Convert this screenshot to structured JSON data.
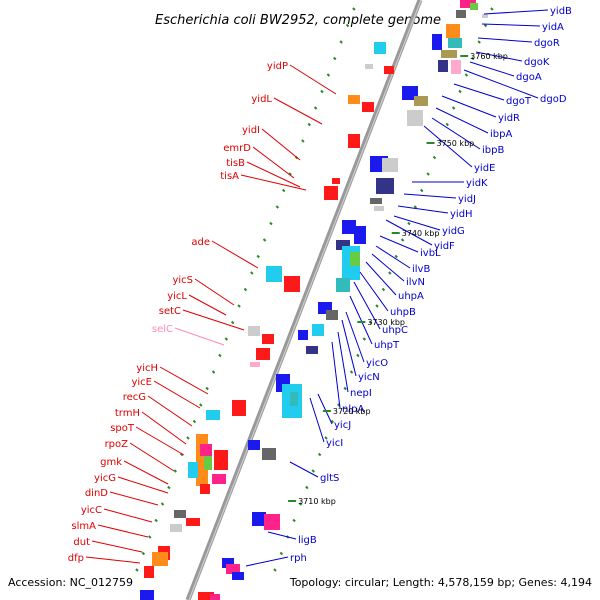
{
  "title": "Escherichia coli BW2952, complete genome",
  "accession": "Accession: NC_012759",
  "topology": "Topology: circular; Length: 4,578,159 bp; Genes: 4,194",
  "colors": {
    "forward_label": "#dd0000",
    "reverse_label": "#0000cc",
    "pseudo_label": "#ff88bb",
    "backbone": "#999999",
    "tick": "#2a8a2a"
  },
  "kbp_ticks": [
    "3760 kbp",
    "3750 kbp",
    "3740 kbp",
    "3730 kbp",
    "3720 kbp",
    "3710 kbp"
  ],
  "forward_genes": [
    "yidP",
    "yidL",
    "yidI",
    "emrD",
    "tisB",
    "tisA",
    "ade",
    "yicS",
    "yicL",
    "setC",
    "selC",
    "yicH",
    "yicE",
    "recG",
    "trmH",
    "spoT",
    "rpoZ",
    "gmk",
    "yicG",
    "dinD",
    "yicC",
    "slmA",
    "dut",
    "dfp"
  ],
  "reverse_genes": [
    "yidB",
    "yidA",
    "dgoR",
    "dgoK",
    "dgoA",
    "dgoD",
    "dgoT",
    "yidR",
    "ibpA",
    "ibpB",
    "yidE",
    "yidK",
    "yidJ",
    "yidH",
    "yidG",
    "yidF",
    "ivbL",
    "ilvB",
    "ilvN",
    "uhpA",
    "uhpB",
    "uhpC",
    "uhpT",
    "yicO",
    "yicN",
    "nepI",
    "nlpA",
    "yicJ",
    "yicI",
    "gltS",
    "ligB",
    "rph"
  ]
}
